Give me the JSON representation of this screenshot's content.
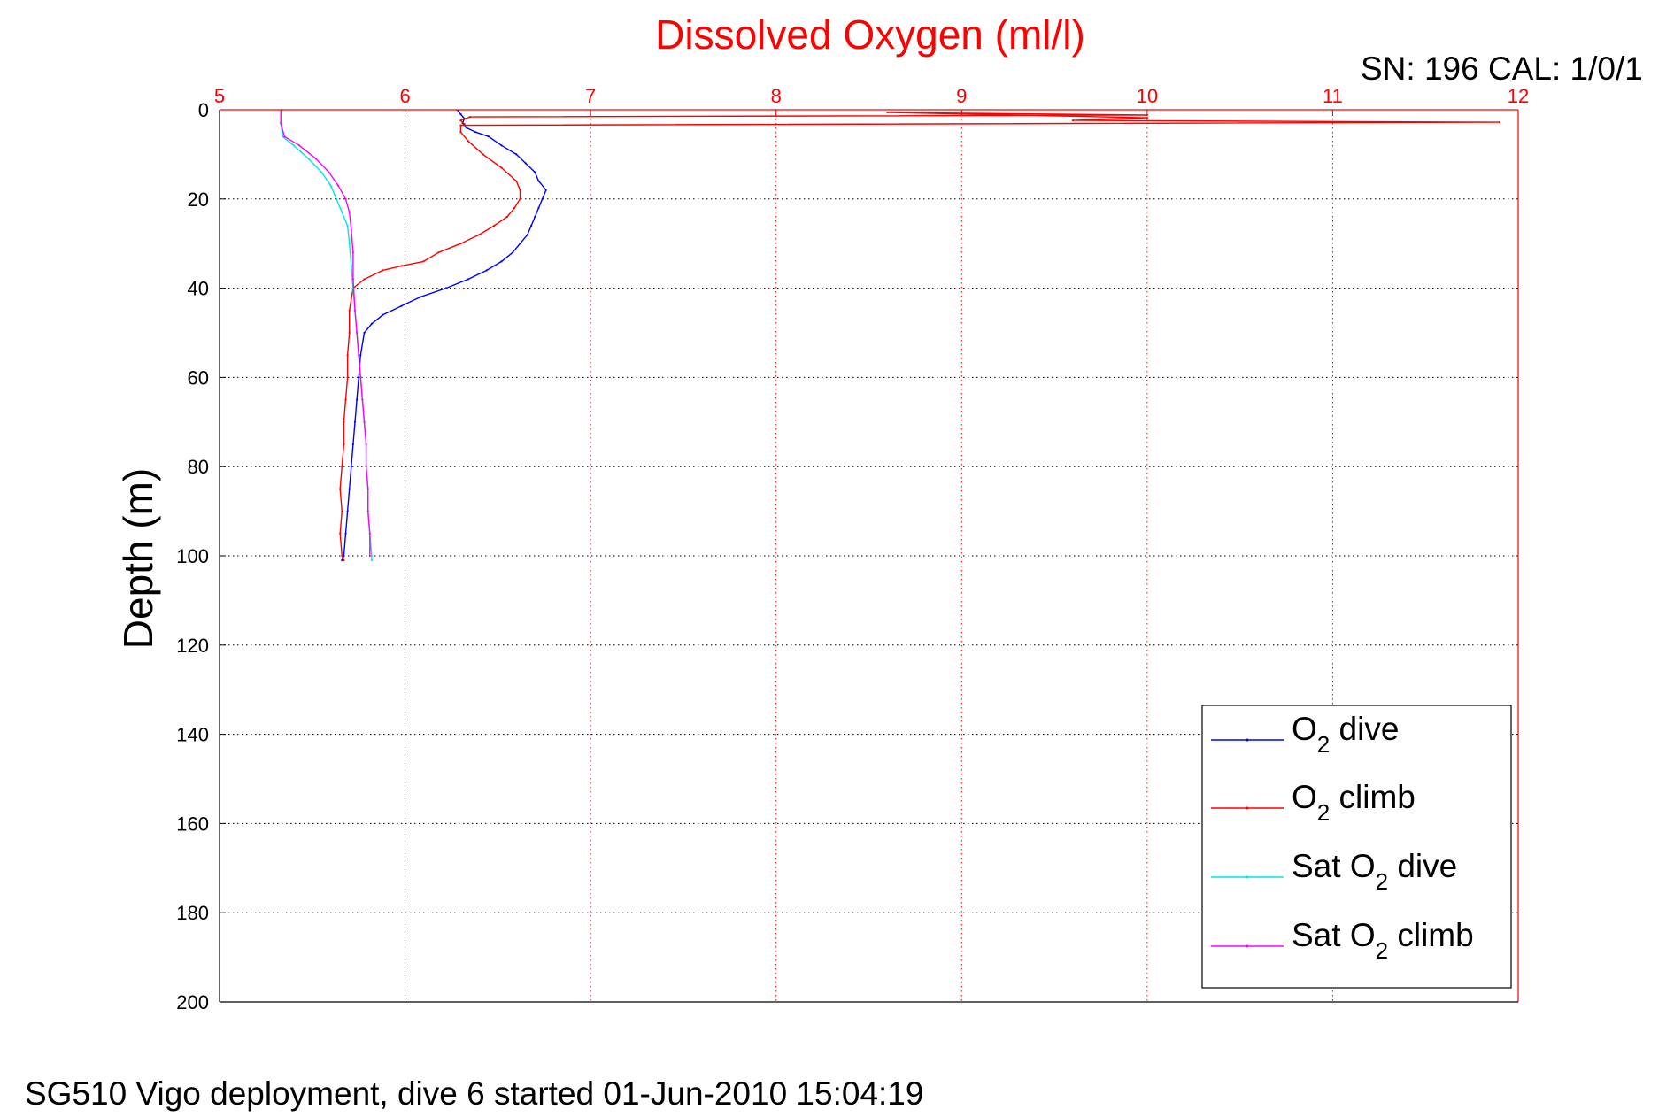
{
  "chart_data": {
    "type": "line",
    "title": "Dissolved Oxygen (ml/l)",
    "calibration_label": "SN: 196  CAL: 1/0/1",
    "ylabel": "Depth (m)",
    "xlabel": "",
    "xlim": [
      5,
      12
    ],
    "ylim": [
      0,
      200
    ],
    "y_reversed": true,
    "x_axis_position": "top",
    "x_ticks": [
      5,
      6,
      7,
      8,
      9,
      10,
      11,
      12
    ],
    "y_ticks": [
      0,
      20,
      40,
      60,
      80,
      100,
      120,
      140,
      160,
      180,
      200
    ],
    "grid": true,
    "legend_position": "bottom-right",
    "series": [
      {
        "name": "O2 dive",
        "legend_base": "O",
        "legend_sub": "2",
        "legend_rest": " dive",
        "color": "#0000ff",
        "points": [
          [
            6.28,
            0
          ],
          [
            6.3,
            1
          ],
          [
            6.32,
            2
          ],
          [
            6.31,
            3
          ],
          [
            6.33,
            4
          ],
          [
            6.38,
            5
          ],
          [
            6.45,
            6
          ],
          [
            6.52,
            8
          ],
          [
            6.6,
            10
          ],
          [
            6.65,
            12
          ],
          [
            6.7,
            14
          ],
          [
            6.72,
            16
          ],
          [
            6.76,
            18
          ],
          [
            6.74,
            20
          ],
          [
            6.72,
            22
          ],
          [
            6.7,
            24
          ],
          [
            6.68,
            26
          ],
          [
            6.66,
            28
          ],
          [
            6.62,
            30
          ],
          [
            6.58,
            32
          ],
          [
            6.52,
            34
          ],
          [
            6.44,
            36
          ],
          [
            6.34,
            38
          ],
          [
            6.22,
            40
          ],
          [
            6.08,
            42
          ],
          [
            5.98,
            44
          ],
          [
            5.88,
            46
          ],
          [
            5.82,
            48
          ],
          [
            5.78,
            50
          ],
          [
            5.76,
            55
          ],
          [
            5.75,
            60
          ],
          [
            5.74,
            65
          ],
          [
            5.73,
            70
          ],
          [
            5.72,
            75
          ],
          [
            5.71,
            80
          ],
          [
            5.7,
            85
          ],
          [
            5.69,
            90
          ],
          [
            5.68,
            95
          ],
          [
            5.67,
            100
          ],
          [
            5.66,
            101
          ]
        ]
      },
      {
        "name": "O2 climb",
        "legend_base": "O",
        "legend_sub": "2",
        "legend_rest": " climb",
        "color": "#ff0000",
        "points": [
          [
            5.67,
            101
          ],
          [
            5.66,
            100
          ],
          [
            5.65,
            95
          ],
          [
            5.66,
            90
          ],
          [
            5.65,
            85
          ],
          [
            5.66,
            80
          ],
          [
            5.67,
            75
          ],
          [
            5.67,
            70
          ],
          [
            5.68,
            65
          ],
          [
            5.69,
            60
          ],
          [
            5.69,
            55
          ],
          [
            5.7,
            50
          ],
          [
            5.7,
            45
          ],
          [
            5.72,
            40
          ],
          [
            5.78,
            38
          ],
          [
            5.88,
            36
          ],
          [
            5.98,
            35
          ],
          [
            6.1,
            34
          ],
          [
            6.18,
            32
          ],
          [
            6.3,
            30
          ],
          [
            6.4,
            28
          ],
          [
            6.48,
            26
          ],
          [
            6.55,
            24
          ],
          [
            6.59,
            22
          ],
          [
            6.62,
            20
          ],
          [
            6.62,
            18
          ],
          [
            6.6,
            16
          ],
          [
            6.52,
            13
          ],
          [
            6.42,
            10
          ],
          [
            6.34,
            7
          ],
          [
            6.3,
            5
          ],
          [
            6.3,
            3.5
          ],
          [
            11.9,
            2.8
          ],
          [
            9.6,
            2.4
          ],
          [
            10.0,
            1.8
          ],
          [
            8.6,
            0.6
          ],
          [
            10.0,
            1.2
          ],
          [
            6.35,
            1.6
          ],
          [
            6.3,
            2.4
          ],
          [
            6.32,
            3.2
          ]
        ]
      },
      {
        "name": "Sat O2 dive",
        "legend_base": "Sat O",
        "legend_sub": "2",
        "legend_rest": " dive",
        "color": "#00e5e5",
        "points": [
          [
            5.33,
            0
          ],
          [
            5.33,
            3
          ],
          [
            5.34,
            6
          ],
          [
            5.4,
            8
          ],
          [
            5.48,
            11
          ],
          [
            5.55,
            14
          ],
          [
            5.6,
            17
          ],
          [
            5.63,
            20
          ],
          [
            5.66,
            23
          ],
          [
            5.69,
            26
          ],
          [
            5.7,
            30
          ],
          [
            5.71,
            35
          ],
          [
            5.72,
            40
          ],
          [
            5.73,
            45
          ],
          [
            5.74,
            50
          ],
          [
            5.75,
            55
          ],
          [
            5.76,
            60
          ],
          [
            5.77,
            65
          ],
          [
            5.78,
            70
          ],
          [
            5.79,
            75
          ],
          [
            5.79,
            80
          ],
          [
            5.8,
            85
          ],
          [
            5.8,
            90
          ],
          [
            5.81,
            95
          ],
          [
            5.82,
            100
          ],
          [
            5.82,
            101
          ]
        ]
      },
      {
        "name": "Sat O2 climb",
        "legend_base": "Sat O",
        "legend_sub": "2",
        "legend_rest": " climb",
        "color": "#ff00ff",
        "points": [
          [
            5.33,
            0
          ],
          [
            5.33,
            3
          ],
          [
            5.35,
            6
          ],
          [
            5.43,
            8
          ],
          [
            5.52,
            11
          ],
          [
            5.59,
            14
          ],
          [
            5.64,
            17
          ],
          [
            5.68,
            20
          ],
          [
            5.7,
            23
          ],
          [
            5.71,
            27
          ],
          [
            5.72,
            32
          ],
          [
            5.72,
            38
          ],
          [
            5.73,
            45
          ],
          [
            5.74,
            50
          ],
          [
            5.75,
            55
          ],
          [
            5.76,
            60
          ],
          [
            5.77,
            65
          ],
          [
            5.78,
            70
          ],
          [
            5.79,
            75
          ],
          [
            5.79,
            80
          ],
          [
            5.8,
            85
          ],
          [
            5.8,
            90
          ],
          [
            5.81,
            95
          ],
          [
            5.81,
            100
          ]
        ]
      }
    ]
  },
  "footer": "SG510 Vigo deployment, dive 6 started 01-Jun-2010 15:04:19"
}
